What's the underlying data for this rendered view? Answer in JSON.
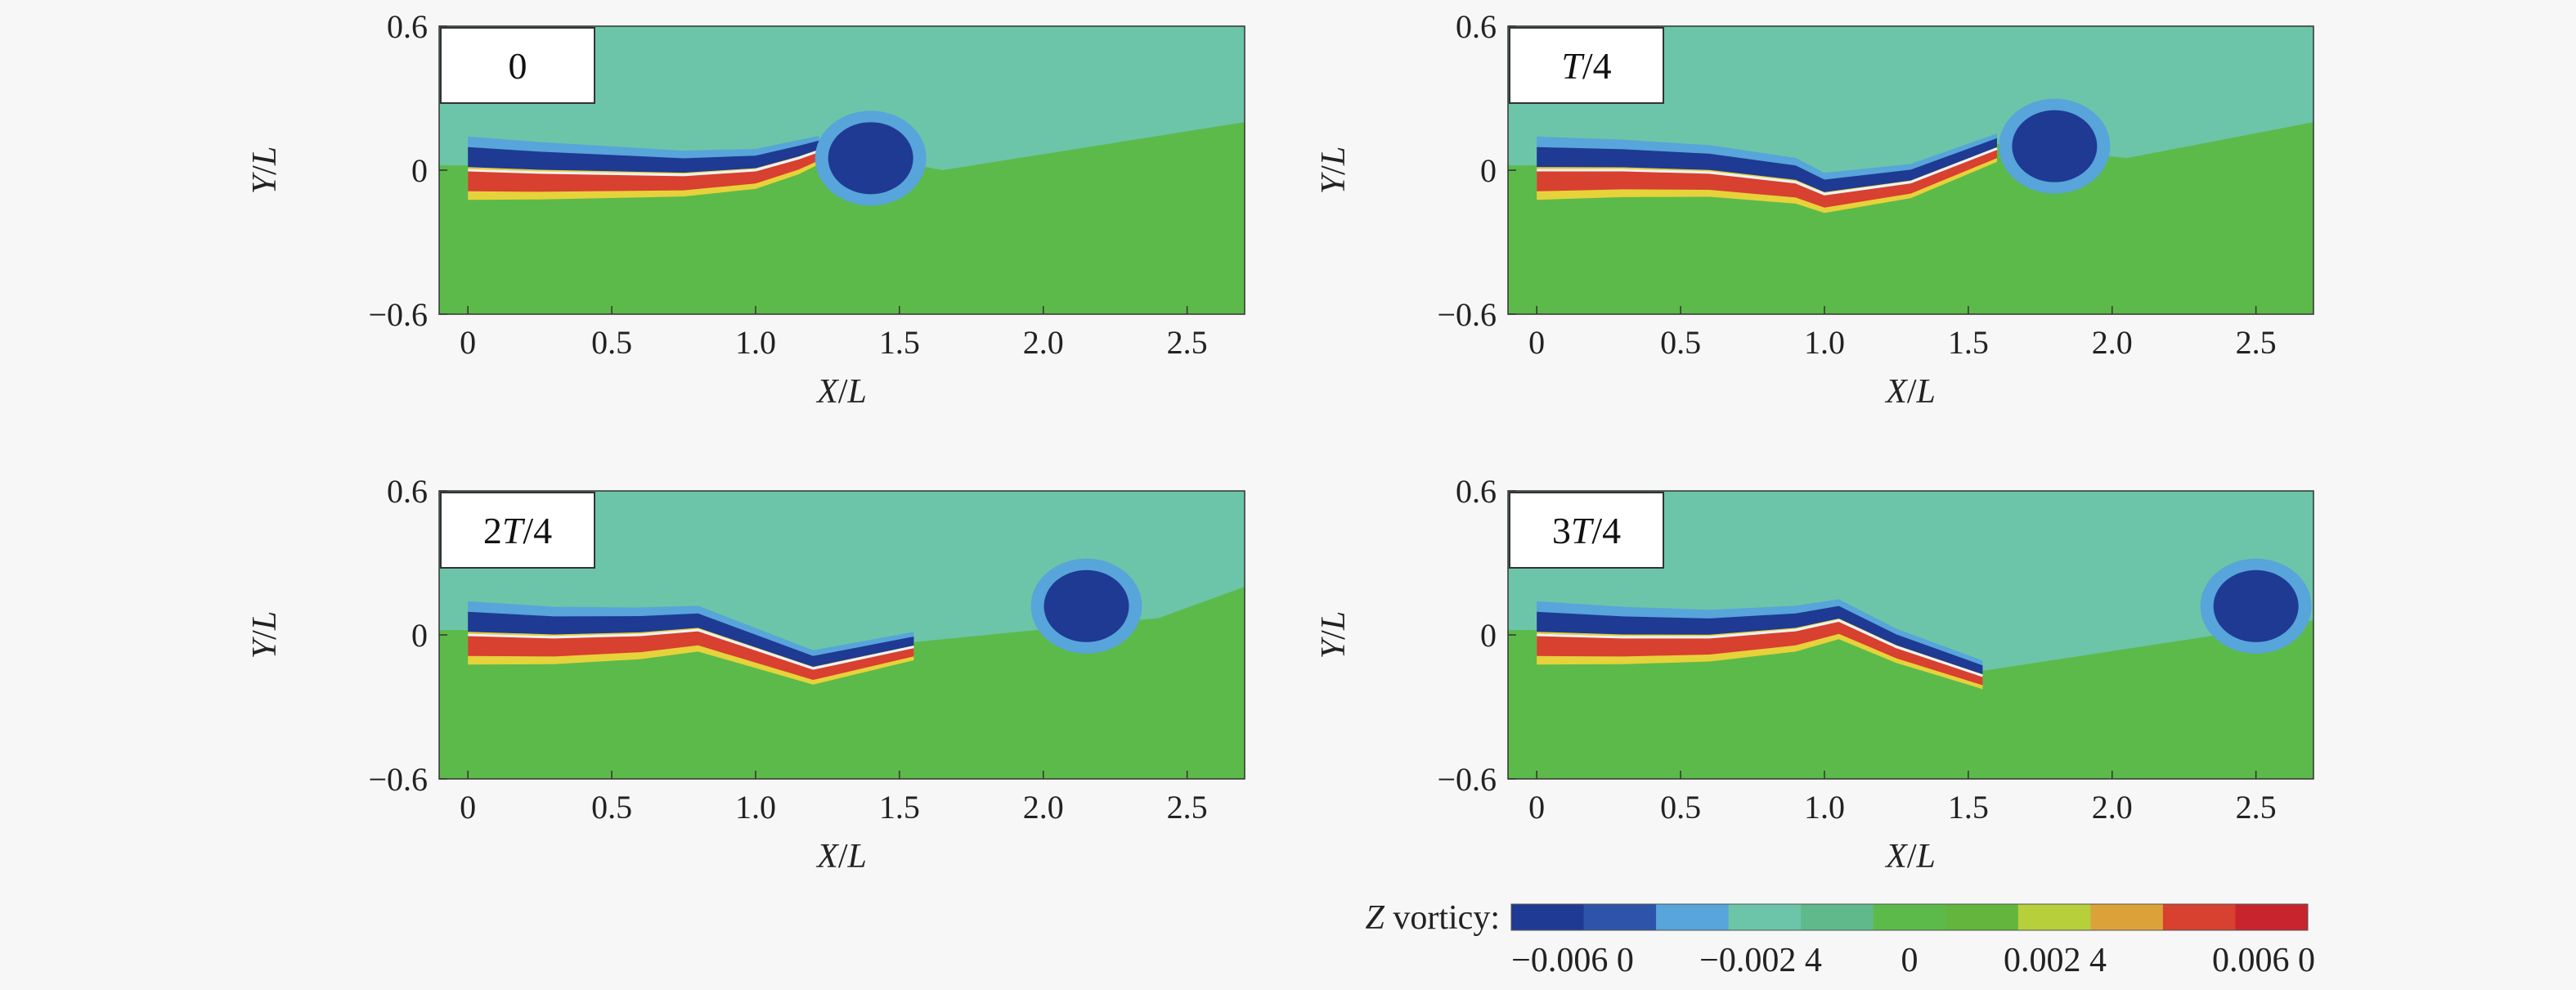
{
  "chart_data": [
    {
      "type": "heatmap",
      "phase_label": "0",
      "xlabel": "X/L",
      "ylabel": "Y/L",
      "xlim": [
        -0.1,
        2.7
      ],
      "ylim": [
        -0.6,
        0.6
      ],
      "xticks": [
        "0",
        "0.5",
        "1.0",
        "1.5",
        "2.0",
        "2.5"
      ],
      "yticks": [
        "0.6",
        "0",
        "−0.6"
      ],
      "body_midline": [
        [
          0,
          0
        ],
        [
          0.25,
          -0.01
        ],
        [
          0.5,
          -0.015
        ],
        [
          0.75,
          -0.02
        ],
        [
          1.0,
          0.0
        ],
        [
          1.15,
          0.05
        ],
        [
          1.22,
          0.08
        ]
      ],
      "shed_vortex_center": [
        1.4,
        0.05
      ]
    },
    {
      "type": "heatmap",
      "phase_label": "T/4",
      "xlabel": "X/L",
      "ylabel": "Y/L",
      "xlim": [
        -0.1,
        2.7
      ],
      "ylim": [
        -0.6,
        0.6
      ],
      "xticks": [
        "0",
        "0.5",
        "1.0",
        "1.5",
        "2.0",
        "2.5"
      ],
      "yticks": [
        "0.6",
        "0",
        "−0.6"
      ],
      "body_midline": [
        [
          0,
          0
        ],
        [
          0.3,
          0.0
        ],
        [
          0.6,
          -0.01
        ],
        [
          0.9,
          -0.05
        ],
        [
          1.0,
          -0.1
        ],
        [
          1.3,
          -0.05
        ],
        [
          1.6,
          0.09
        ]
      ],
      "shed_vortex_center": [
        1.8,
        0.1
      ]
    },
    {
      "type": "heatmap",
      "phase_label": "2T/4",
      "xlabel": "X/L",
      "ylabel": "Y/L",
      "xlim": [
        -0.1,
        2.7
      ],
      "ylim": [
        -0.6,
        0.6
      ],
      "xticks": [
        "0",
        "0.5",
        "1.0",
        "1.5",
        "2.0",
        "2.5"
      ],
      "yticks": [
        "0.6",
        "0",
        "−0.6"
      ],
      "body_midline": [
        [
          0,
          0
        ],
        [
          0.3,
          -0.01
        ],
        [
          0.6,
          0.0
        ],
        [
          0.8,
          0.02
        ],
        [
          1.0,
          -0.06
        ],
        [
          1.2,
          -0.14
        ],
        [
          1.55,
          -0.05
        ]
      ],
      "shed_vortex_center": [
        2.15,
        0.12
      ]
    },
    {
      "type": "heatmap",
      "phase_label": "3T/4",
      "xlabel": "X/L",
      "ylabel": "Y/L",
      "xlim": [
        -0.1,
        2.7
      ],
      "ylim": [
        -0.6,
        0.6
      ],
      "xticks": [
        "0",
        "0.5",
        "1.0",
        "1.5",
        "2.0",
        "2.5"
      ],
      "yticks": [
        "0.6",
        "0",
        "−0.6"
      ],
      "body_midline": [
        [
          0,
          0
        ],
        [
          0.3,
          -0.01
        ],
        [
          0.6,
          -0.01
        ],
        [
          0.9,
          0.02
        ],
        [
          1.05,
          0.06
        ],
        [
          1.25,
          -0.05
        ],
        [
          1.55,
          -0.17
        ]
      ],
      "shed_vortex_center": [
        2.5,
        0.12
      ]
    }
  ],
  "colorbar": {
    "label_var": "Z",
    "label_rest": " vorticy:",
    "ticks": [
      "−0.006 0",
      "−0.002 4",
      "0",
      "0.002 4",
      "0.006 0"
    ],
    "colors": [
      "#1f3a93",
      "#2d54a8",
      "#57a5da",
      "#6cc5a8",
      "#5fb98b",
      "#5cba4a",
      "#63b53d",
      "#b7cf3a",
      "#dba23a",
      "#d8402f",
      "#c7242e"
    ]
  },
  "colors": {
    "background": "#6cc5a8",
    "lower_field": "#5cba4a",
    "strong_negative": "#1f3a93",
    "negative_edge": "#57a5da",
    "strong_positive": "#d8402f",
    "positive_edge": "#e6d23a",
    "body_line": "#f2f2f2"
  }
}
